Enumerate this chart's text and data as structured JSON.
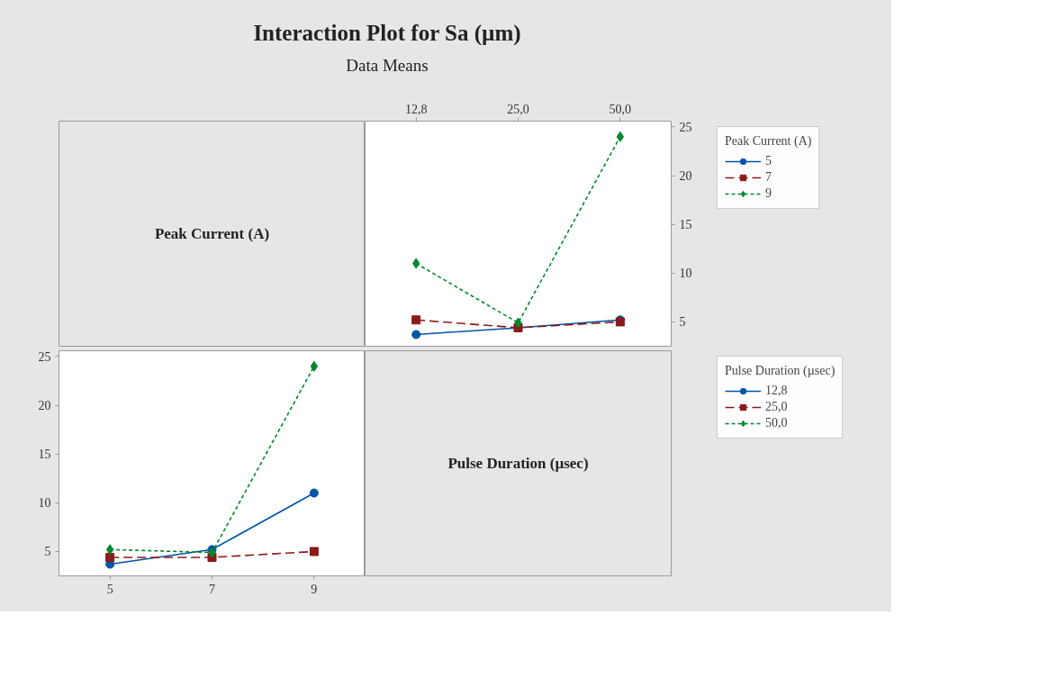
{
  "chart_data": [
    {
      "type": "other",
      "title": "Interaction Plot for Sa (µm)",
      "subtitle": "Data Means",
      "annotations": [
        "Peak Current (A)"
      ]
    },
    {
      "type": "line",
      "categories": [
        "12,8",
        "25,0",
        "50,0"
      ],
      "ylim": [
        2.5,
        25.6
      ],
      "yticks": [
        5,
        10,
        15,
        20,
        25
      ],
      "grid": false,
      "legend": "right",
      "legend_title": "Peak Current (A)",
      "series": [
        {
          "name": "5",
          "color": "#0054a6",
          "marker": "circle",
          "line_style": "solid",
          "values": [
            3.7,
            4.4,
            5.2
          ]
        },
        {
          "name": "7",
          "color": "#8b1a1a",
          "marker": "square",
          "line_style": "dashed",
          "values": [
            5.2,
            4.4,
            5.0
          ]
        },
        {
          "name": "9",
          "color": "#00882b",
          "marker": "diamond",
          "line_style": "dotted",
          "values": [
            11.0,
            4.9,
            24.0
          ]
        }
      ]
    },
    {
      "type": "line",
      "categories": [
        "5",
        "7",
        "9"
      ],
      "ylim": [
        2.5,
        25.6
      ],
      "yticks": [
        5,
        10,
        15,
        20,
        25
      ],
      "grid": false,
      "legend": "right",
      "legend_title": "Pulse Duration (µsec)",
      "series": [
        {
          "name": "12,8",
          "color": "#0054a6",
          "marker": "circle",
          "line_style": "solid",
          "values": [
            3.7,
            5.2,
            11.0
          ]
        },
        {
          "name": "25,0",
          "color": "#8b1a1a",
          "marker": "square",
          "line_style": "dashed",
          "values": [
            4.4,
            4.4,
            5.0
          ]
        },
        {
          "name": "50,0",
          "color": "#00882b",
          "marker": "diamond",
          "line_style": "dotted",
          "values": [
            5.2,
            4.9,
            24.0
          ]
        }
      ]
    },
    {
      "type": "other",
      "annotations": [
        "Pulse Duration (µsec)"
      ]
    }
  ]
}
